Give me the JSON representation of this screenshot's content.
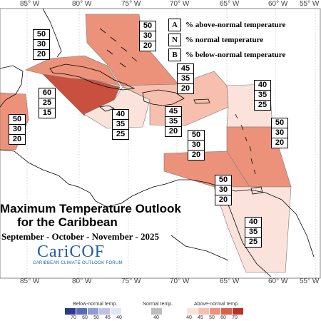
{
  "map": {
    "title_line1": "Maximum Temperature Outlook",
    "title_line2": "for the Caribbean",
    "season": "September - October - November - 2025",
    "logo_text": "CariCOF",
    "logo_subtitle": "CARIBBEAN CLIMATE OUTLOOK FORUM",
    "longitude_labels": [
      "85° W",
      "80° W",
      "75° W",
      "70° W",
      "65° W",
      "60° W",
      "55° W"
    ]
  },
  "legend": {
    "a_key": "A",
    "a_text": "% above-normal temperature",
    "n_key": "N",
    "n_text": "% normal temperature",
    "b_key": "B",
    "b_text": "% below-normal temperature"
  },
  "regions": [
    {
      "name": "central-america-west",
      "values": [
        "50",
        "30",
        "20"
      ]
    },
    {
      "name": "bahamas",
      "values": [
        "50",
        "30",
        "20"
      ]
    },
    {
      "name": "cuba-west",
      "values": [
        "50",
        "30",
        "20"
      ]
    },
    {
      "name": "cuba-central",
      "values": [
        "60",
        "25",
        "15"
      ]
    },
    {
      "name": "jamaica",
      "values": [
        "40",
        "35",
        "25"
      ]
    },
    {
      "name": "hispaniola-north",
      "values": [
        "45",
        "35",
        "20"
      ]
    },
    {
      "name": "hispaniola-south",
      "values": [
        "45",
        "35",
        "20"
      ]
    },
    {
      "name": "northern-leewards",
      "values": [
        "40",
        "35",
        "25"
      ]
    },
    {
      "name": "eastern-caribbean",
      "values": [
        "50",
        "30",
        "20"
      ]
    },
    {
      "name": "puerto-rico",
      "values": [
        "50",
        "30",
        "20"
      ]
    },
    {
      "name": "abc-islands",
      "values": [
        "50",
        "30",
        "20"
      ]
    },
    {
      "name": "guianas",
      "values": [
        "40",
        "35",
        "25"
      ]
    }
  ],
  "colorbar": {
    "below_label": "Below-normal temp.",
    "normal_label": "Normal temp.",
    "above_label": "Above-normal temp.",
    "below_ticks": [
      "70",
      "60",
      "50",
      "45",
      "40"
    ],
    "normal_ticks": [
      "40"
    ],
    "above_ticks": [
      "40",
      "45",
      "50",
      "60",
      "70"
    ],
    "below_colors": [
      "#2b3a8f",
      "#5a6ab8",
      "#8f9ad0",
      "#bcc3e6",
      "#e2e5f4"
    ],
    "normal_color": "#bdbdbd",
    "above_colors": [
      "#fbe3dc",
      "#f6bfae",
      "#ec927a",
      "#d8614a",
      "#b83226"
    ]
  },
  "colors": {
    "cat40": "#fbe3dc",
    "cat45": "#f6bfae",
    "cat50": "#ec927a",
    "cat60": "#c9503e",
    "land": "#ffffff",
    "coast": "#000000"
  }
}
